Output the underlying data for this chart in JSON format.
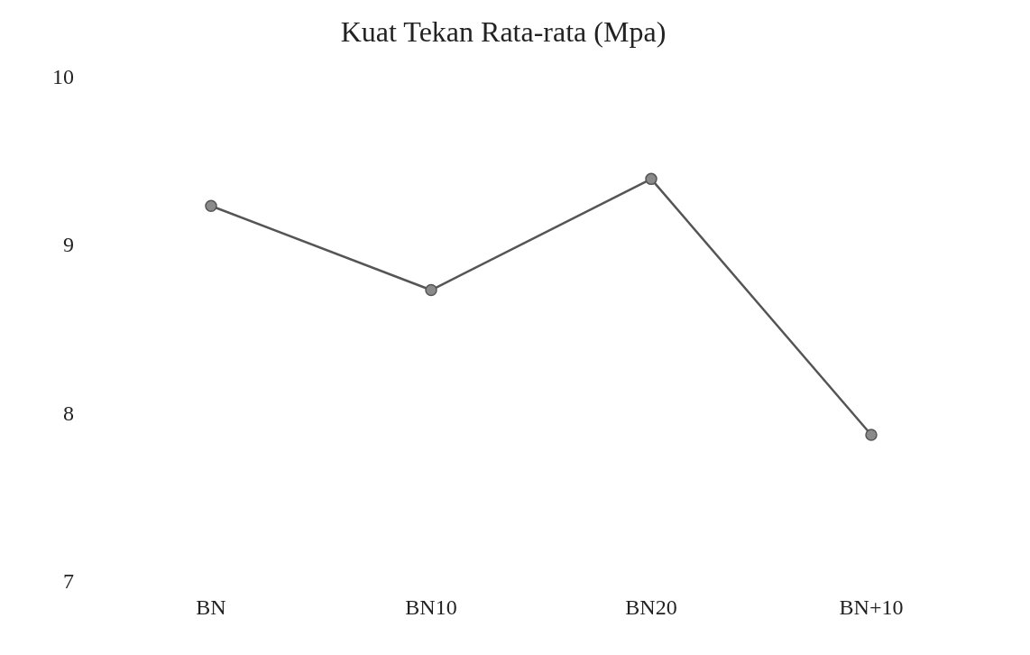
{
  "chart_data": {
    "type": "line",
    "title": "Kuat Tekan Rata-rata (Mpa)",
    "categories": [
      "BN",
      "BN10",
      "BN20",
      "BN+10"
    ],
    "series": [
      {
        "color": "#555555",
        "values": [
          9.24,
          8.74,
          9.4,
          7.88
        ]
      }
    ],
    "ylim": [
      7,
      10
    ],
    "yticks": [
      7,
      8,
      9,
      10
    ],
    "grid": false,
    "legend": false,
    "marker": "circle",
    "line_style": "solid"
  }
}
